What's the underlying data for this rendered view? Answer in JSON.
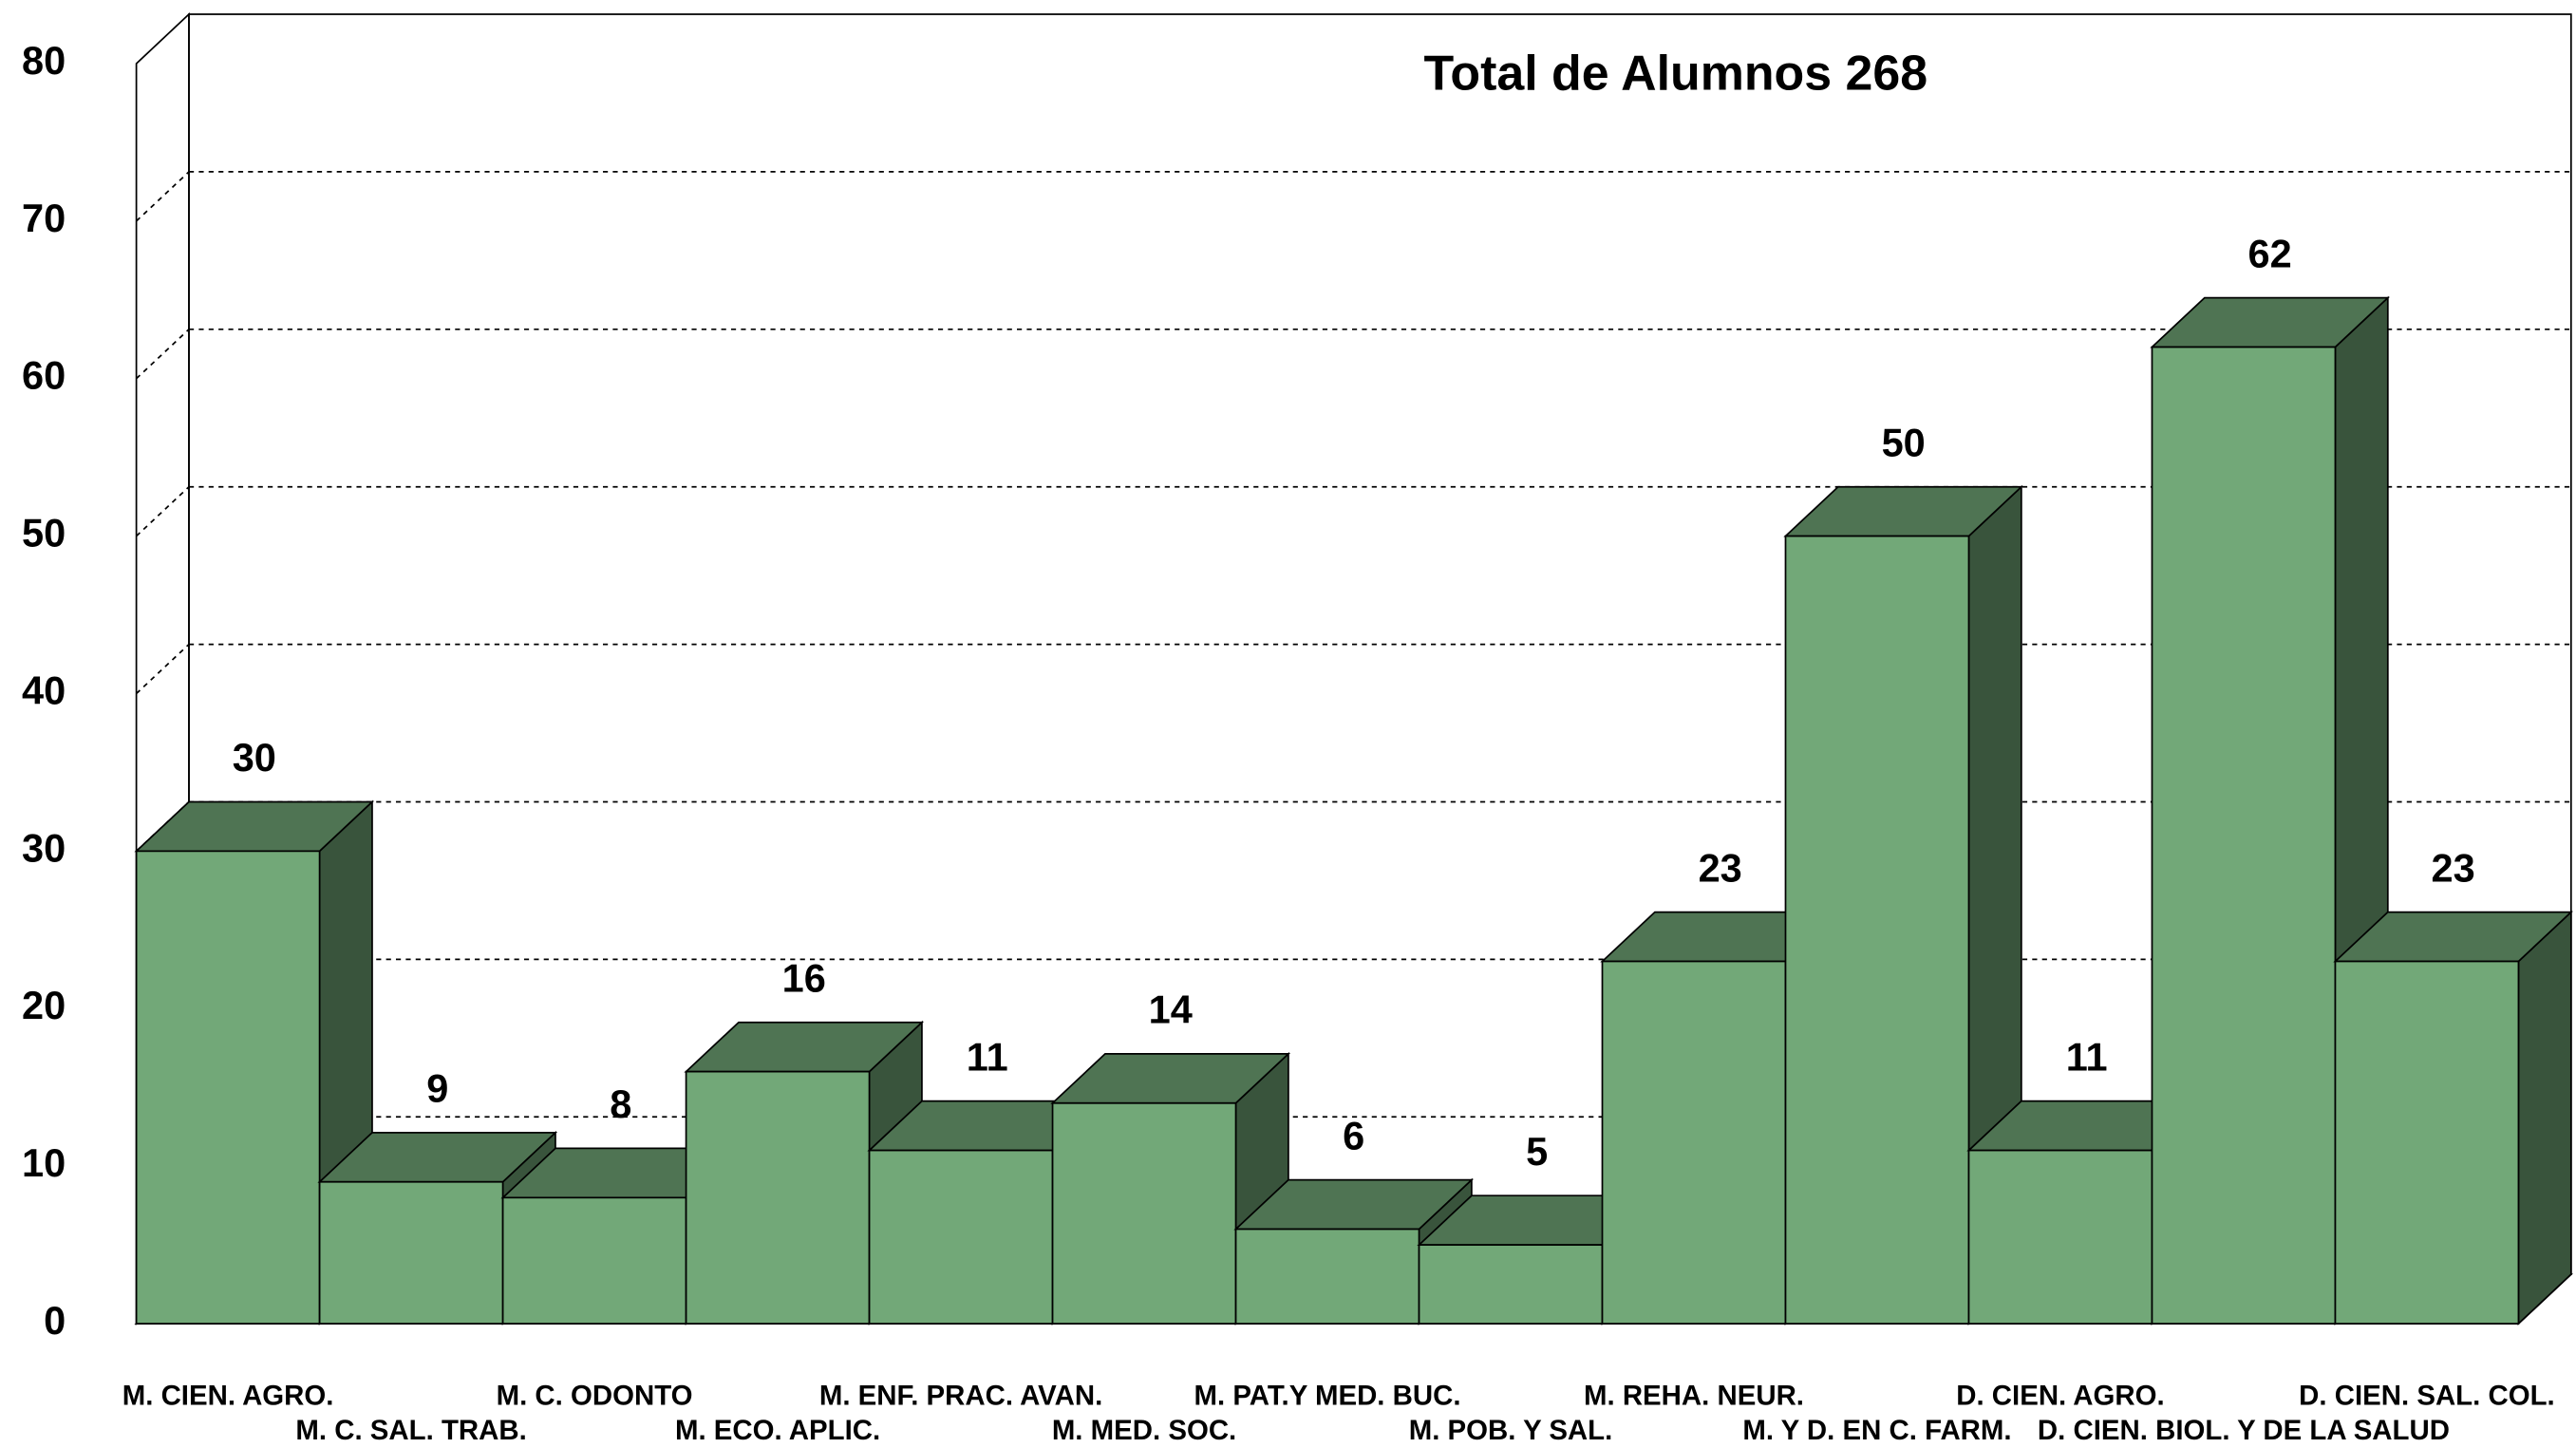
{
  "chart_data": {
    "type": "bar3d",
    "title": "Total de Alumnos 268",
    "categories": [
      "M. CIEN. AGRO.",
      "M. C. SAL. TRAB.",
      "M. C. ODONTO",
      "M. ECO. APLIC.",
      "M. ENF. PRAC. AVAN.",
      "M. MED. SOC.",
      "M. PAT.Y MED. BUC.",
      "M. POB. Y SAL.",
      "M. REHA. NEUR.",
      "M. Y D. EN C. FARM.",
      "D. CIEN. AGRO.",
      "D. CIEN. BIOL. Y DE LA SALUD",
      "D. CIEN. SAL. COL."
    ],
    "values": [
      30,
      9,
      8,
      16,
      11,
      14,
      6,
      5,
      23,
      50,
      11,
      62,
      23
    ],
    "color": "#72a878",
    "ylim": [
      0,
      80
    ],
    "yticks": [
      0,
      10,
      20,
      30,
      40,
      50,
      60,
      70,
      80
    ],
    "grid": true
  }
}
